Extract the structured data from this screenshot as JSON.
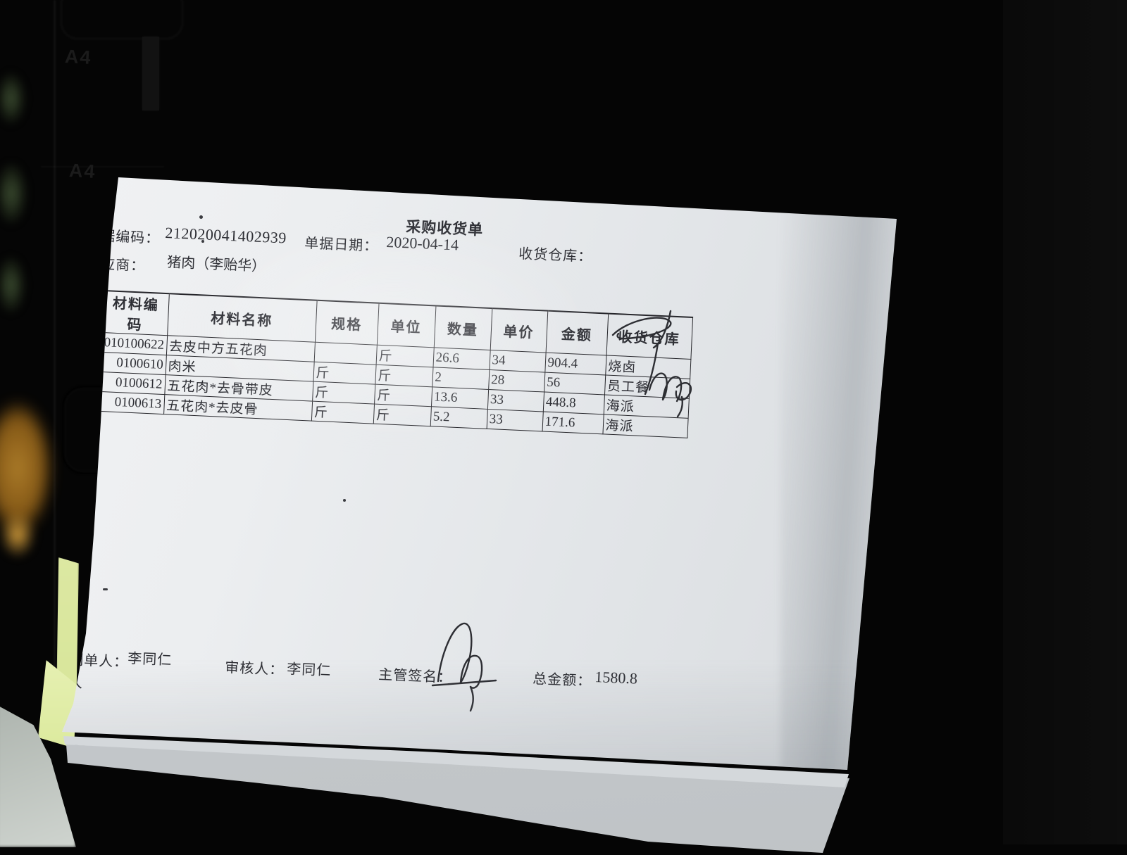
{
  "doc": {
    "title": "采购收货单",
    "code_label": "单据编码：",
    "code": "212020041402939",
    "date_label": "单据日期：",
    "date": "2020-04-14",
    "warehouse_label": "收货仓库：",
    "supplier_label": "供应商：",
    "supplier": "猪肉（李贻华）"
  },
  "table": {
    "columns": [
      "材料编码",
      "材料名称",
      "规格",
      "单位",
      "数量",
      "单价",
      "金额",
      "收货仓库"
    ],
    "rows": [
      [
        "010100622",
        "去皮中方五花肉",
        "",
        "斤",
        "26.6",
        "34",
        "904.4",
        "烧卤"
      ],
      [
        "0100610",
        "肉米",
        "斤",
        "斤",
        "2",
        "28",
        "56",
        "员工餐"
      ],
      [
        "0100612",
        "五花肉*去骨带皮",
        "斤",
        "斤",
        "13.6",
        "33",
        "448.8",
        "海派"
      ],
      [
        "0100613",
        "五花肉*去皮骨",
        "斤",
        "斤",
        "5.2",
        "33",
        "171.6",
        "海派"
      ]
    ]
  },
  "footer": {
    "maker_label": "制单人：",
    "maker": "李同仁",
    "reviewer_label": "审核人：",
    "reviewer": "李同仁",
    "sign_label": "主管签名：",
    "total_label": "总金额：",
    "total": "1580.8",
    "partial_person": "人"
  },
  "background": {
    "emboss_text": "A4"
  },
  "colors": {
    "paper": "#e7eaec",
    "ink": "#2e2f35",
    "background": "#050505",
    "sticky_note": "#dfeaa4",
    "orange_glow": "#b5822b"
  }
}
